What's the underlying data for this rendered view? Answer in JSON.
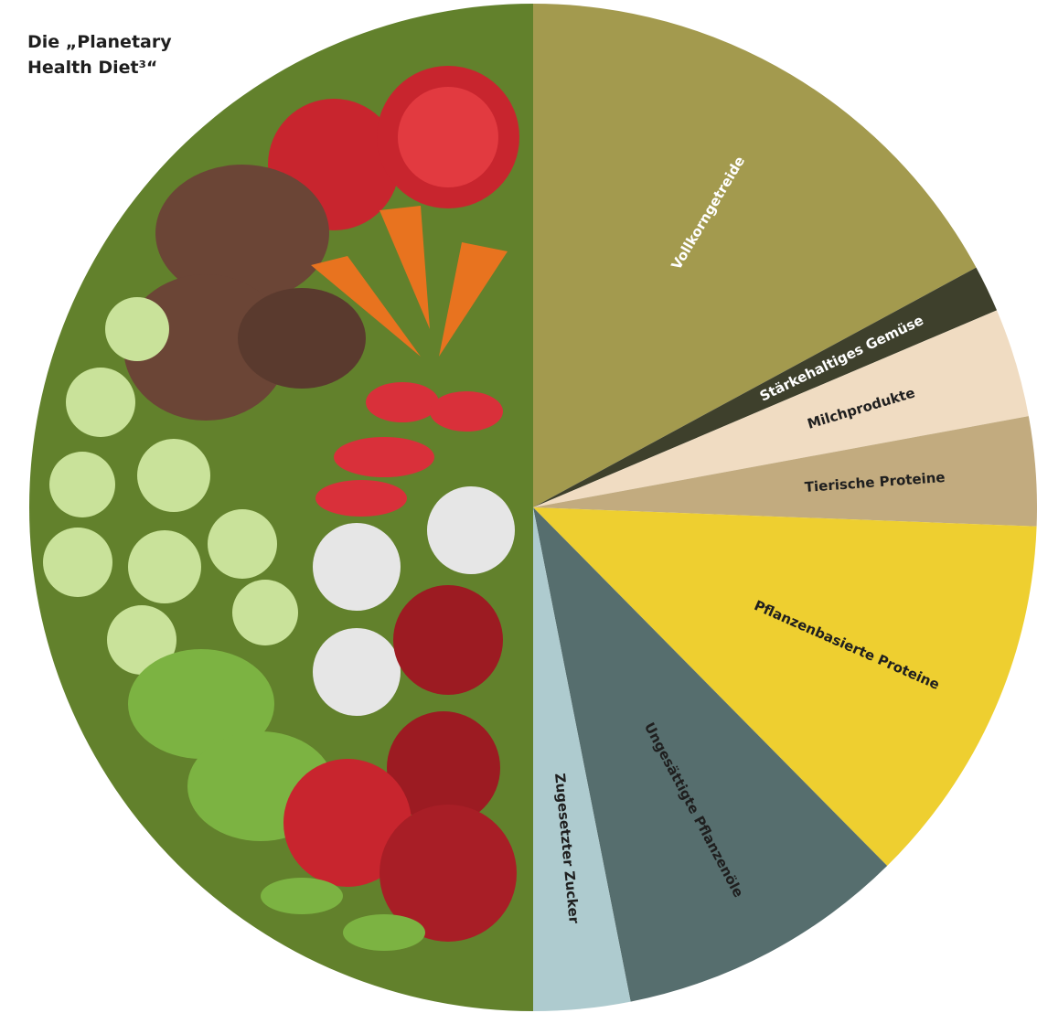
{
  "chart_data": {
    "type": "pie",
    "title": "Die „Planetary Health Diet³“",
    "categories": [
      "Vollkorngetreide",
      "Stärkehaltiges Gemüse",
      "Milchprodukte",
      "Tierische Proteine",
      "Pflanzenbasierte Proteine",
      "Ungesättigte Pflanzenöle",
      "Zugesetzter Zucker",
      null
    ],
    "values": [
      17.1,
      1.5,
      3.5,
      3.5,
      12,
      9.3,
      3.1,
      50
    ],
    "colors": [
      "#a39a4e",
      "#3e402c",
      "#f0dcc2",
      "#c2ab7f",
      "#eecf30",
      "#566e6e",
      "#aecbcf",
      "#62812c"
    ],
    "label_colors": [
      "#ffffff",
      "#ffffff",
      "#1f1f1f",
      "#1f1f1f",
      "#1f1f1f",
      "#1f1f1f",
      "#1f1f1f",
      "#ffffff"
    ]
  }
}
